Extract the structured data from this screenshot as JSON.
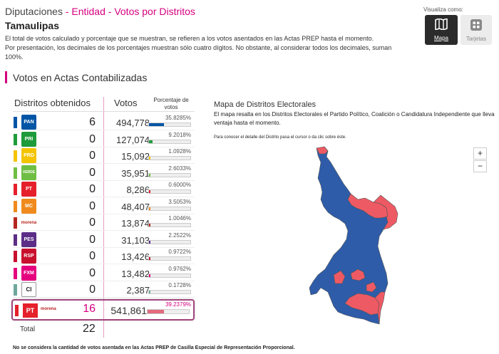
{
  "breadcrumb": {
    "part1": "Diputaciones",
    "sep1": " - ",
    "part2": "Entidad",
    "sep2": " - ",
    "part3": "Votos por Distritos"
  },
  "state": "Tamaulipas",
  "description": {
    "line1": "El total de votos calculado y porcentaje que se muestran, se refieren a los votos asentados en las Actas PREP hasta el momento.",
    "line2": "Por presentación, los decimales de los porcentajes muestran sólo cuatro dígitos. No obstante, al considerar todos los decimales, suman 100%."
  },
  "visualiza": {
    "label": "Visualiza como:",
    "mapa": "Mapa",
    "tarjetas": "Tarjetas"
  },
  "section_title": "Votos en Actas Contabilizadas",
  "table": {
    "header_distritos": "Distritos obtenidos",
    "header_votos": "Votos",
    "header_pct": "Porcentaje de votos",
    "rows": [
      {
        "party": "PAN",
        "color": "#0055a5",
        "distritos": "6",
        "votos": "494,778",
        "pct": "35.8285%",
        "pct_value": 35.8285
      },
      {
        "party": "PRI",
        "color": "#1e9b3a",
        "distritos": "0",
        "votos": "127,074",
        "pct": "9.2018%",
        "pct_value": 9.2018
      },
      {
        "party": "PRD",
        "color": "#f4c400",
        "distritos": "0",
        "votos": "15,092",
        "pct": "1.0928%",
        "pct_value": 1.0928
      },
      {
        "party": "VERDE",
        "color": "#6fbe44",
        "distritos": "0",
        "votos": "35,951",
        "pct": "2.6033%",
        "pct_value": 2.6033
      },
      {
        "party": "PT",
        "color": "#e5202b",
        "distritos": "0",
        "votos": "8,286",
        "pct": "0.6000%",
        "pct_value": 0.6
      },
      {
        "party": "MC",
        "color": "#f08a1c",
        "distritos": "0",
        "votos": "48,407",
        "pct": "3.5053%",
        "pct_value": 3.5053
      },
      {
        "party": "morena",
        "color": "#b5261e",
        "distritos": "0",
        "votos": "13,874",
        "pct": "1.0046%",
        "pct_value": 1.0046
      },
      {
        "party": "PES",
        "color": "#5b2d86",
        "distritos": "0",
        "votos": "31,103",
        "pct": "2.2522%",
        "pct_value": 2.2522
      },
      {
        "party": "RSP",
        "color": "#c8102e",
        "distritos": "0",
        "votos": "13,426",
        "pct": "0.9722%",
        "pct_value": 0.9722
      },
      {
        "party": "FXM",
        "color": "#e5007e",
        "distritos": "0",
        "votos": "13,482",
        "pct": "0.9762%",
        "pct_value": 0.9762
      },
      {
        "party": "CI",
        "color": "#6ea89b",
        "distritos": "0",
        "votos": "2,387",
        "pct": "0.1728%",
        "pct_value": 0.1728
      }
    ],
    "winner": {
      "party": "PT",
      "coalition_label": "morena",
      "distritos": "16",
      "votos": "541,861",
      "pct": "39.2379%",
      "pct_value": 39.2379
    },
    "total_label": "Total",
    "total_value": "22"
  },
  "footnote": "No se considera la cantidad de votos asentada en las Actas PREP de Casilla Especial de Representación Proporcional.",
  "map": {
    "title": "Mapa de Distritos Electorales",
    "desc": "El mapa resalta en los Distritos Electorales el Partido Político, Coalición o Candidatura Independiente que lleva ventaja hasta el momento.",
    "hint": "Para conocer el detalle del Distrito pasa el cursor o da clic sobre éste.",
    "zoom_in": "+",
    "zoom_out": "−",
    "colors": {
      "pan": "#2e5ca8",
      "coalition": "#ee5a64"
    }
  }
}
